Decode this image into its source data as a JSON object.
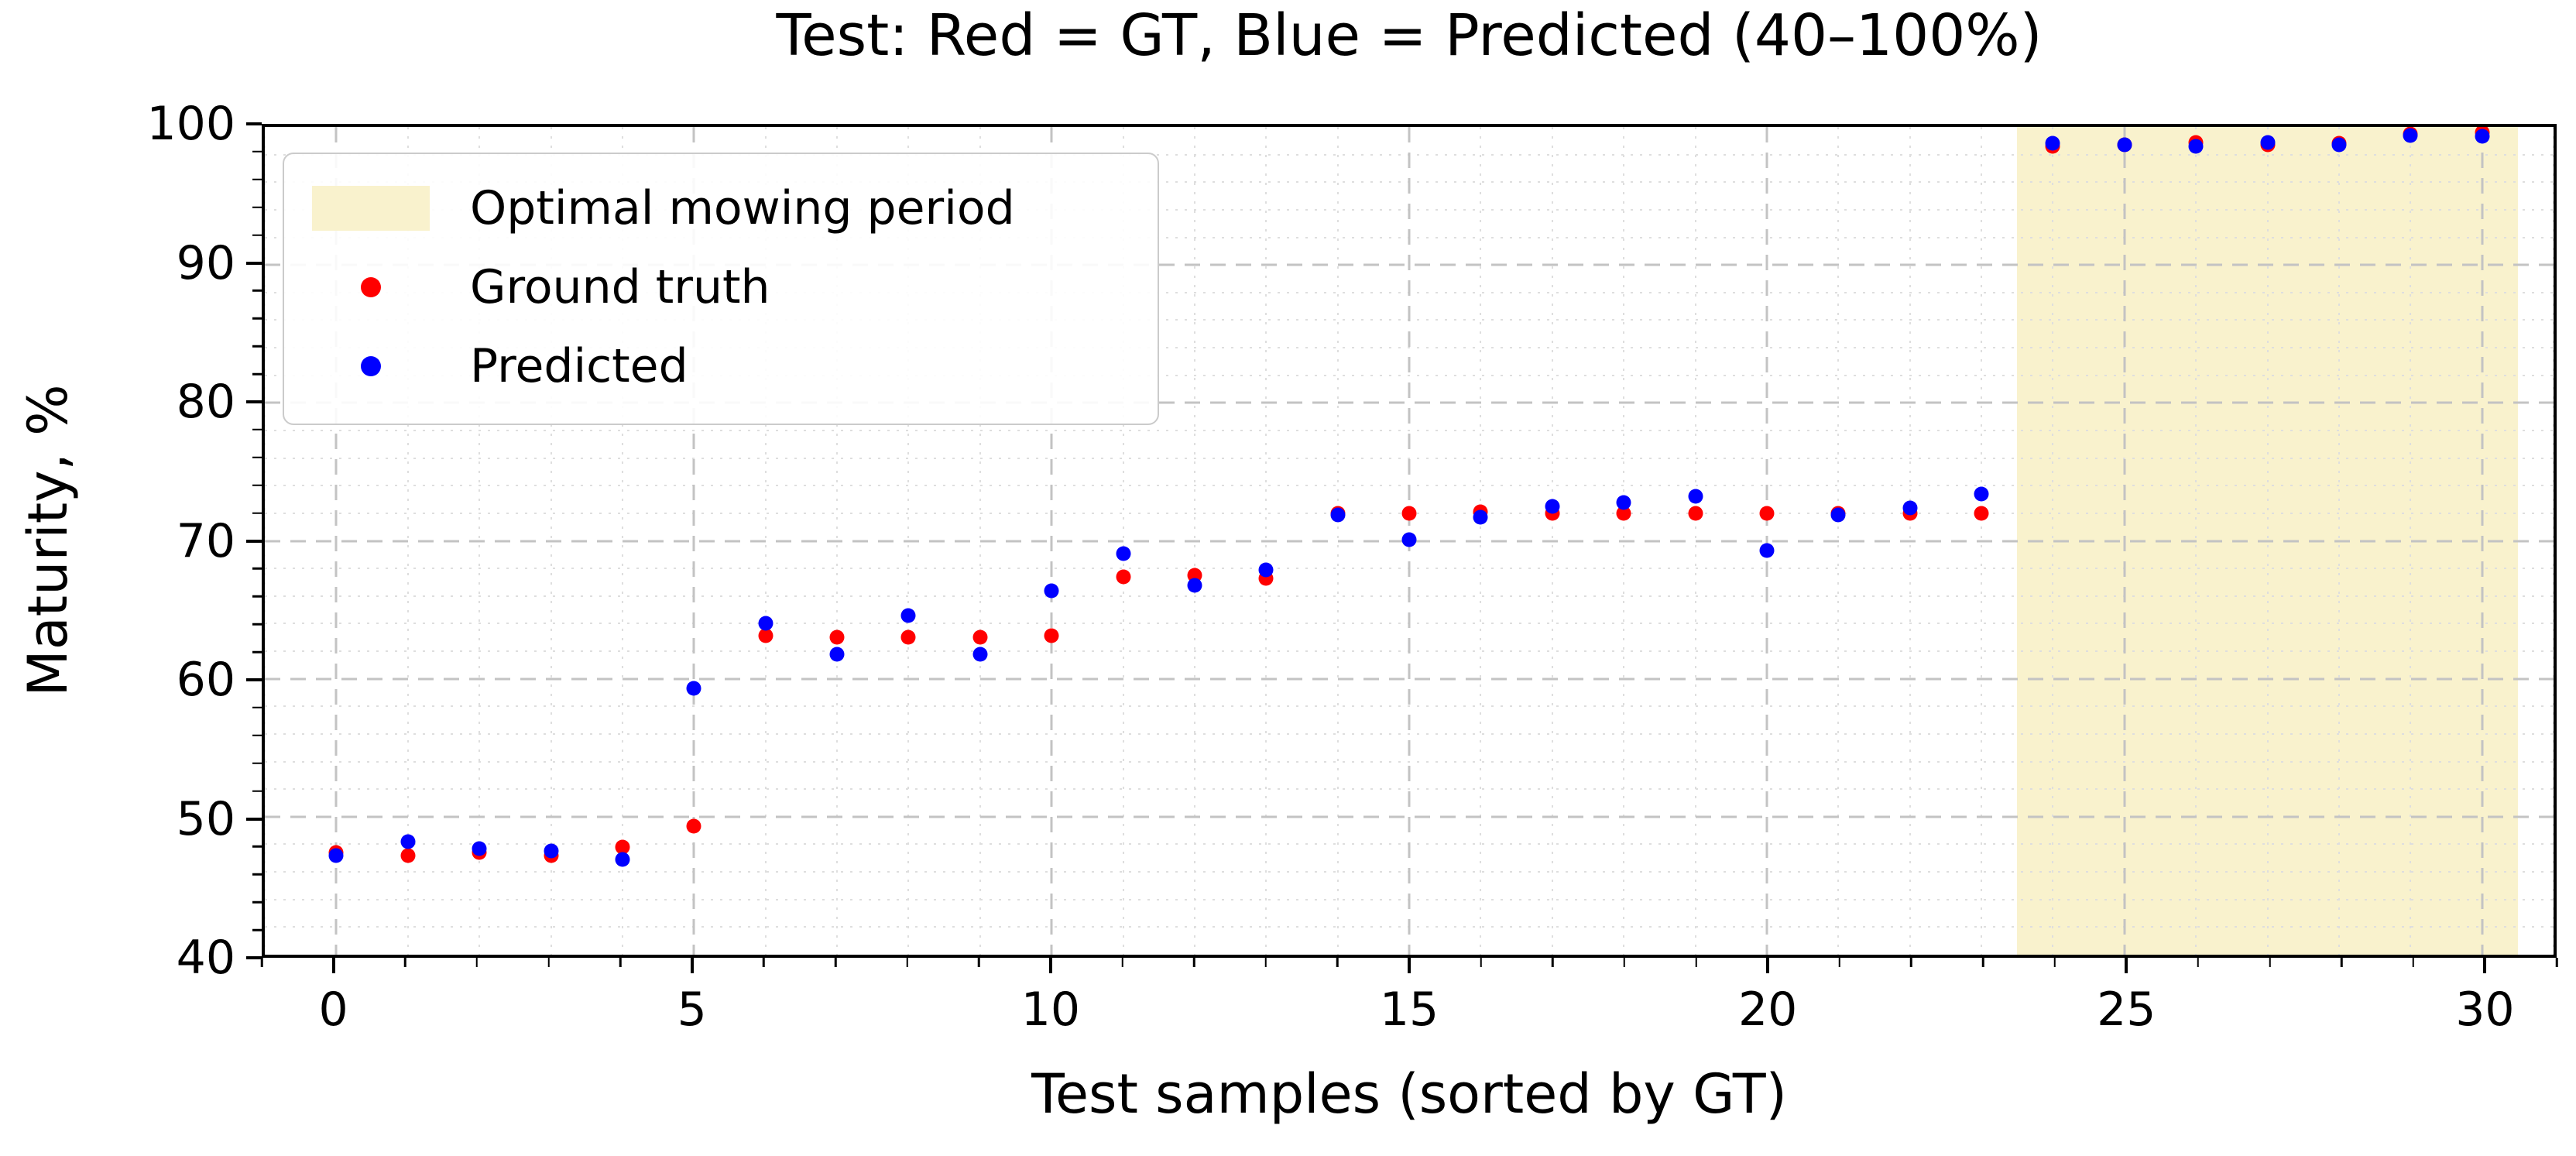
{
  "title": "Test: Red = GT, Blue = Predicted (40–100%)",
  "legend": {
    "items": [
      {
        "label": "Optimal mowing period",
        "marker": "patch",
        "color": "#f9f2cd"
      },
      {
        "label": "Ground truth",
        "marker": "dot",
        "color": "#ff0000"
      },
      {
        "label": "Predicted",
        "marker": "dot",
        "color": "#0000ff"
      }
    ]
  },
  "chart_data": {
    "type": "scatter",
    "title": "Test: Red = GT, Blue = Predicted (40–100%)",
    "xlabel": "Test samples (sorted by GT)",
    "ylabel": "Maturity, %",
    "xlim": [
      -1,
      31
    ],
    "ylim": [
      40,
      100
    ],
    "x_major_ticks": [
      0,
      5,
      10,
      15,
      20,
      25,
      30
    ],
    "y_major_ticks": [
      40,
      50,
      60,
      70,
      80,
      90,
      100
    ],
    "x_minor_step": 1,
    "y_minor_step": 2,
    "grid": true,
    "legend_position": "upper left",
    "band": {
      "name": "Optimal mowing period",
      "x_start": 23.5,
      "x_end": 30.5,
      "color": "#f9f2cd"
    },
    "x": [
      0,
      1,
      2,
      3,
      4,
      5,
      6,
      7,
      8,
      9,
      10,
      11,
      12,
      13,
      14,
      15,
      16,
      17,
      18,
      19,
      20,
      21,
      22,
      23,
      24,
      25,
      26,
      27,
      28,
      29,
      30
    ],
    "series": [
      {
        "name": "Ground truth",
        "color": "#ff0000",
        "values": [
          47.4,
          47.2,
          47.4,
          47.2,
          47.8,
          49.3,
          63.1,
          63.0,
          63.0,
          63.0,
          63.1,
          67.4,
          67.5,
          67.3,
          72.0,
          72.0,
          72.1,
          72.0,
          72.0,
          72.0,
          72.0,
          72.0,
          72.0,
          72.0,
          98.6,
          98.7,
          98.9,
          98.7,
          98.8,
          99.5,
          99.6
        ]
      },
      {
        "name": "Predicted",
        "color": "#0000ff",
        "values": [
          47.2,
          48.2,
          47.7,
          47.5,
          46.9,
          59.3,
          64.0,
          61.8,
          64.6,
          61.8,
          66.4,
          69.1,
          66.8,
          67.9,
          71.9,
          70.1,
          71.7,
          72.5,
          72.8,
          73.2,
          69.3,
          71.9,
          72.4,
          73.4,
          98.8,
          98.7,
          98.6,
          98.9,
          98.7,
          99.4,
          99.3
        ]
      }
    ]
  },
  "colors": {
    "grid_major": "#c3c3c3",
    "grid_minor": "#dedede",
    "spine": "#000000",
    "background": "#ffffff"
  }
}
